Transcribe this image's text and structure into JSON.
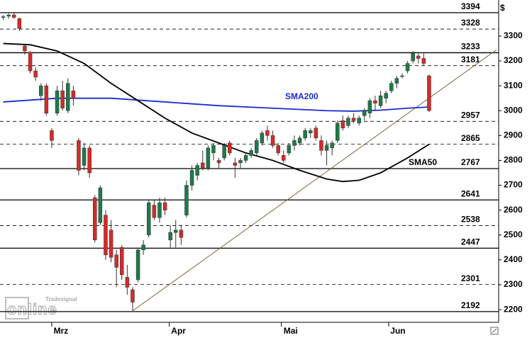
{
  "chart_data": {
    "type": "candlestick",
    "currency": "$",
    "x": [
      0,
      1,
      2,
      3,
      4,
      5,
      6,
      7,
      8,
      9,
      10,
      11,
      12,
      13,
      14,
      15,
      16,
      17,
      18,
      19,
      20,
      21,
      22,
      23,
      24,
      25,
      26,
      27,
      28,
      29,
      30,
      31,
      32,
      33,
      34,
      35,
      36,
      37,
      38,
      39,
      40,
      41,
      42,
      43,
      44,
      45,
      46,
      47,
      48,
      49,
      50,
      51,
      52,
      53,
      54,
      55,
      56,
      57,
      58,
      59,
      60,
      61,
      62,
      63,
      64,
      65,
      66,
      67,
      68,
      69,
      70,
      71,
      72,
      73,
      74,
      75,
      76,
      77,
      78,
      79
    ],
    "open": [
      3375,
      3380,
      3385,
      3370,
      3260,
      3235,
      3160,
      3060,
      3100,
      2920,
      2990,
      3080,
      3000,
      3080,
      2880,
      2780,
      2850,
      2650,
      2550,
      2580,
      2520,
      2420,
      2450,
      2330,
      2280,
      2320,
      2440,
      2500,
      2620,
      2570,
      2630,
      2480,
      2510,
      2520,
      2580,
      2700,
      2740,
      2790,
      2770,
      2830,
      2800,
      2810,
      2870,
      2790,
      2790,
      2800,
      2820,
      2830,
      2870,
      2920,
      2900,
      2860,
      2820,
      2830,
      2860,
      2870,
      2890,
      2910,
      2930,
      2880,
      2840,
      2850,
      2880,
      2960,
      2940,
      2970,
      2950,
      2980,
      2990,
      3040,
      3020,
      3050,
      3080,
      3110,
      3140,
      3160,
      3200,
      3220,
      3210,
      3140
    ],
    "high": [
      3385,
      3390,
      3392,
      3375,
      3265,
      3240,
      3175,
      3110,
      3110,
      2930,
      3100,
      3120,
      3130,
      3100,
      2890,
      2870,
      2860,
      2660,
      2700,
      2600,
      2560,
      2440,
      2460,
      2380,
      2290,
      2450,
      2480,
      2640,
      2640,
      2650,
      2650,
      2540,
      2560,
      2540,
      2720,
      2780,
      2790,
      2840,
      2860,
      2870,
      2810,
      2870,
      2880,
      2810,
      2810,
      2830,
      2850,
      2890,
      2920,
      2940,
      2920,
      2870,
      2840,
      2870,
      2900,
      2900,
      2930,
      2930,
      2940,
      2900,
      2880,
      2880,
      2960,
      2980,
      2980,
      2990,
      2980,
      3010,
      3050,
      3060,
      3080,
      3080,
      3120,
      3140,
      3150,
      3200,
      3240,
      3230,
      3230,
      3145
    ],
    "low": [
      3365,
      3370,
      3370,
      3320,
      3225,
      3150,
      3120,
      3040,
      2980,
      2850,
      2980,
      3000,
      2990,
      3020,
      2740,
      2760,
      2730,
      2470,
      2540,
      2400,
      2390,
      2290,
      2320,
      2260,
      2195,
      2310,
      2420,
      2490,
      2560,
      2550,
      2580,
      2450,
      2450,
      2460,
      2570,
      2680,
      2720,
      2760,
      2760,
      2800,
      2770,
      2800,
      2820,
      2730,
      2770,
      2790,
      2810,
      2820,
      2860,
      2880,
      2850,
      2820,
      2790,
      2820,
      2840,
      2860,
      2880,
      2890,
      2880,
      2820,
      2780,
      2820,
      2870,
      2920,
      2930,
      2950,
      2940,
      2960,
      2970,
      3000,
      3010,
      3030,
      3070,
      3090,
      3130,
      3150,
      3190,
      3190,
      3180,
      2995
    ],
    "close": [
      3378,
      3385,
      3375,
      3330,
      3240,
      3160,
      3135,
      3100,
      2990,
      2880,
      3080,
      3010,
      3110,
      3050,
      2760,
      2850,
      2750,
      2480,
      2690,
      2420,
      2410,
      2370,
      2340,
      2290,
      2230,
      2440,
      2460,
      2630,
      2570,
      2630,
      2600,
      2510,
      2520,
      2490,
      2700,
      2760,
      2780,
      2770,
      2850,
      2860,
      2790,
      2860,
      2830,
      2780,
      2800,
      2820,
      2840,
      2880,
      2910,
      2900,
      2860,
      2830,
      2800,
      2860,
      2880,
      2890,
      2920,
      2920,
      2890,
      2840,
      2860,
      2870,
      2950,
      2930,
      2970,
      2960,
      2970,
      3000,
      3040,
      3030,
      3060,
      3070,
      3110,
      3130,
      3140,
      3190,
      3230,
      3210,
      3190,
      3000
    ],
    "up_color": "#1e7a4a",
    "down_color": "#d42a2a",
    "lines": [
      {
        "name": "SMA200",
        "color": "#1a2ccc",
        "x": [
          0,
          10,
          20,
          30,
          40,
          50,
          60,
          65,
          70,
          75,
          79
        ],
        "values": [
          3035,
          3050,
          3050,
          3035,
          3020,
          3010,
          3000,
          2998,
          3002,
          3010,
          3015
        ]
      },
      {
        "name": "SMA50",
        "color": "#000000",
        "x": [
          0,
          5,
          10,
          15,
          20,
          25,
          30,
          35,
          40,
          45,
          50,
          55,
          60,
          63,
          66,
          70,
          75,
          79
        ],
        "values": [
          3270,
          3265,
          3240,
          3190,
          3110,
          3040,
          2970,
          2910,
          2870,
          2830,
          2800,
          2760,
          2725,
          2715,
          2720,
          2750,
          2810,
          2865
        ]
      }
    ],
    "trendline": {
      "x": [
        24,
        91.5
      ],
      "values": [
        2195,
        3245
      ],
      "color": "#6b5a2a"
    },
    "levels": [
      3394,
      3328,
      3233,
      3181,
      2957,
      2865,
      2767,
      2641,
      2538,
      2447,
      2301,
      2192
    ],
    "level_styles": [
      "solid",
      "dashed",
      "solid",
      "dashed",
      "dashed",
      "dashed",
      "solid",
      "solid",
      "dashed",
      "solid",
      "dashed",
      "solid"
    ],
    "xlim": [
      -0.6,
      91.9
    ],
    "xticks": [
      {
        "value": 9,
        "label": "Mrz"
      },
      {
        "value": 30.8,
        "label": "Apr"
      },
      {
        "value": 51.6,
        "label": "Mai"
      },
      {
        "value": 71.5,
        "label": "Jun"
      }
    ],
    "ylim": [
      2149,
      3445
    ],
    "yticks": [
      2200,
      2300,
      2400,
      2500,
      2600,
      2700,
      2800,
      2900,
      3000,
      3100,
      3200,
      3300
    ],
    "watermark": [
      "Tradesignal",
      "online"
    ]
  }
}
